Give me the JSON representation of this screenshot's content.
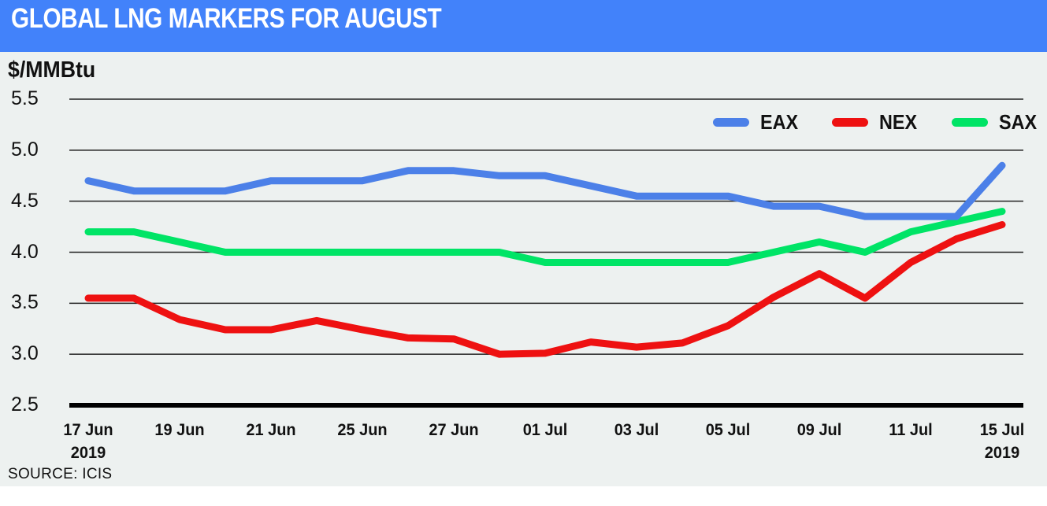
{
  "header": {
    "title": "GLOBAL LNG MARKERS FOR AUGUST"
  },
  "unit_label": "$/MMBtu",
  "source": "SOURCE: ICIS",
  "colors": {
    "header_bg": "#4282fa",
    "header_text": "#ffffff",
    "plot_bg": "#edf1f0",
    "gridline": "#222222",
    "axis": "#000000",
    "eax_blue": "#4c80e8",
    "nex_red": "#ee1111",
    "sax_green": "#00e466"
  },
  "chart_data": {
    "type": "line",
    "title": "GLOBAL LNG MARKERS FOR AUGUST",
    "ylabel": "$/MMBtu",
    "ylim": [
      2.5,
      5.5
    ],
    "yticks": [
      5.5,
      5.0,
      4.5,
      4.0,
      3.5,
      3.0,
      2.5
    ],
    "ytick_labels": [
      "5.5",
      "5.0",
      "4.5",
      "4.0",
      "3.5",
      "3.0",
      "2.5"
    ],
    "grid": true,
    "legend_position": "top-right",
    "x_point_count": 21,
    "xtick_labels": [
      {
        "index": 0,
        "label": "17 Jun",
        "sub": "2019"
      },
      {
        "index": 2,
        "label": "19 Jun",
        "sub": ""
      },
      {
        "index": 4,
        "label": "21 Jun",
        "sub": ""
      },
      {
        "index": 6,
        "label": "25 Jun",
        "sub": ""
      },
      {
        "index": 8,
        "label": "27 Jun",
        "sub": ""
      },
      {
        "index": 10,
        "label": "01 Jul",
        "sub": ""
      },
      {
        "index": 12,
        "label": "03 Jul",
        "sub": ""
      },
      {
        "index": 14,
        "label": "05 Jul",
        "sub": ""
      },
      {
        "index": 16,
        "label": "09 Jul",
        "sub": ""
      },
      {
        "index": 18,
        "label": "11 Jul",
        "sub": ""
      },
      {
        "index": 20,
        "label": "15 Jul",
        "sub": "2019"
      }
    ],
    "series": [
      {
        "name": "SAX",
        "color": "#00e466",
        "values": [
          4.2,
          4.2,
          4.1,
          4.0,
          4.0,
          4.0,
          4.0,
          4.0,
          4.0,
          4.0,
          3.9,
          3.9,
          3.9,
          3.9,
          3.9,
          4.0,
          4.1,
          4.0,
          4.2,
          4.3,
          4.4
        ]
      },
      {
        "name": "NEX",
        "color": "#ee1111",
        "values": [
          3.55,
          3.55,
          3.34,
          3.24,
          3.24,
          3.33,
          3.24,
          3.16,
          3.15,
          3.0,
          3.01,
          3.12,
          3.07,
          3.11,
          3.28,
          3.56,
          3.79,
          3.55,
          3.9,
          4.13,
          4.27
        ]
      },
      {
        "name": "EAX",
        "color": "#4c80e8",
        "values": [
          4.7,
          4.6,
          4.6,
          4.6,
          4.7,
          4.7,
          4.7,
          4.8,
          4.8,
          4.75,
          4.75,
          4.65,
          4.55,
          4.55,
          4.55,
          4.45,
          4.45,
          4.35,
          4.35,
          4.35,
          4.85
        ]
      }
    ],
    "legend_order": [
      "EAX",
      "NEX",
      "SAX"
    ]
  }
}
